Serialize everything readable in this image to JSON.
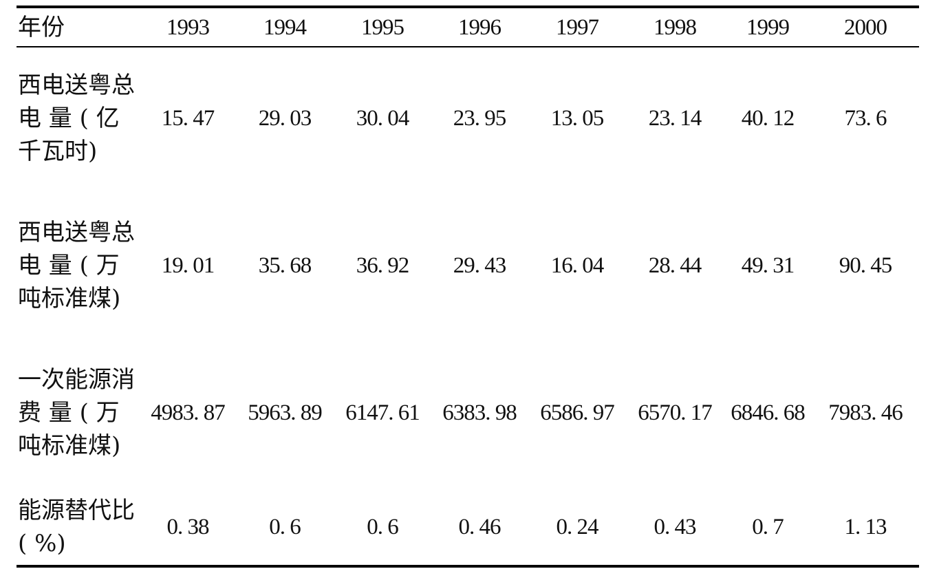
{
  "chart_data": {
    "type": "table",
    "header_label": "年份",
    "years": [
      "1993",
      "1994",
      "1995",
      "1996",
      "1997",
      "1998",
      "1999",
      "2000"
    ],
    "rows": [
      {
        "label_lines": [
          "西电送粤总",
          "电 量 ( 亿",
          "千瓦时)"
        ],
        "values": [
          "15. 47",
          "29. 03",
          "30. 04",
          "23. 95",
          "13. 05",
          "23. 14",
          "40. 12",
          "73. 6"
        ]
      },
      {
        "label_lines": [
          "西电送粤总",
          "电 量 ( 万",
          "吨标准煤)"
        ],
        "values": [
          "19. 01",
          "35. 68",
          "36. 92",
          "29. 43",
          "16. 04",
          "28. 44",
          "49. 31",
          "90. 45"
        ]
      },
      {
        "label_lines": [
          "一次能源消",
          "费 量 ( 万",
          "吨标准煤)"
        ],
        "values": [
          "4983. 87",
          "5963. 89",
          "6147. 61",
          "6383. 98",
          "6586. 97",
          "6570. 17",
          "6846. 68",
          "7983. 46"
        ]
      },
      {
        "label_lines": [
          "能源替代比",
          "( %)"
        ],
        "values": [
          "0. 38",
          "0. 6",
          "0. 6",
          "0. 46",
          "0. 24",
          "0. 43",
          "0. 7",
          "1. 13"
        ]
      }
    ]
  }
}
